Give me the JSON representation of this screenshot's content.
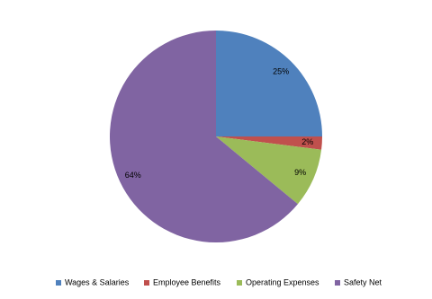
{
  "chart_data": {
    "type": "pie",
    "categories": [
      "Wages & Salaries",
      "Employee Benefits",
      "Operating Expenses",
      "Safety Net"
    ],
    "values": [
      25,
      2,
      9,
      64
    ],
    "value_labels": [
      "25%",
      "2%",
      "9%",
      "64%"
    ],
    "colors": [
      "#4f81bd",
      "#c0504d",
      "#9bbb59",
      "#8064a2"
    ],
    "legend": "bottom"
  }
}
